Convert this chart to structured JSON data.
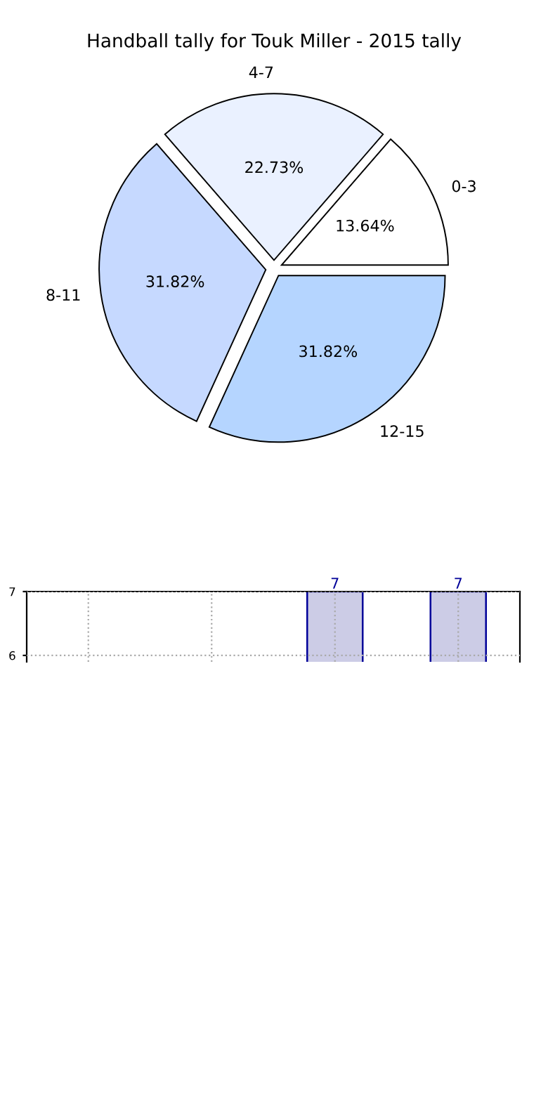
{
  "chart_data": [
    {
      "type": "pie",
      "title": "Handball tally for Touk Miller - 2015 tally",
      "categories": [
        "0-3",
        "4-7",
        "8-11",
        "12-15"
      ],
      "values": [
        13.64,
        22.73,
        31.82,
        31.82
      ],
      "colors": [
        "#ffffff",
        "#eaf1ff",
        "#c6d9ff",
        "#b5d5ff"
      ],
      "value_labels": [
        "13.64%",
        "22.73%",
        "31.82%",
        "31.82%"
      ]
    },
    {
      "type": "bar",
      "categories": [
        null,
        null,
        null,
        null
      ],
      "values": [
        null,
        null,
        7,
        7
      ],
      "color": "#cccce6",
      "value_labels": [
        null,
        null,
        "7",
        "7"
      ],
      "ylim": [
        5.9,
        7
      ],
      "yticks": [
        6,
        7
      ],
      "grid": true
    }
  ]
}
